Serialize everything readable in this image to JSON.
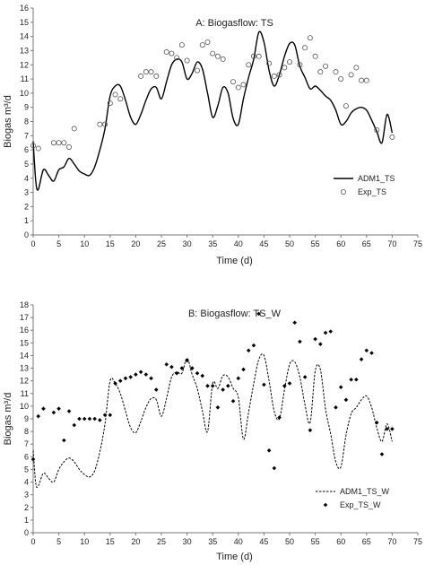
{
  "chart_data": [
    {
      "type": "line",
      "title": "A: Biogasflow: TS",
      "xlabel": "Time (d)",
      "ylabel": "Biogas m³/d",
      "xlim": [
        0,
        75
      ],
      "ylim": [
        0,
        16
      ],
      "xticks": [
        0,
        5,
        10,
        15,
        20,
        25,
        30,
        35,
        40,
        45,
        50,
        55,
        60,
        65,
        70,
        75
      ],
      "yticks": [
        0,
        1,
        2,
        3,
        4,
        5,
        6,
        7,
        8,
        9,
        10,
        11,
        12,
        13,
        14,
        15,
        16
      ],
      "grid": false,
      "legend_position": "bottom-right",
      "series": [
        {
          "name": "ADM1_TS",
          "style": "solid",
          "color": "#000000",
          "x": [
            0,
            0.5,
            1,
            2,
            3,
            4,
            5,
            6,
            7,
            8,
            9,
            10,
            11,
            12,
            13,
            14,
            15,
            16,
            17,
            18,
            19,
            20,
            21,
            22,
            23,
            24,
            25,
            26,
            27,
            28,
            29,
            30,
            31,
            32,
            33,
            34,
            35,
            36,
            37,
            38,
            39,
            40,
            41,
            42,
            43,
            44,
            45,
            46,
            47,
            48,
            49,
            50,
            51,
            52,
            53,
            54,
            55,
            56,
            57,
            58,
            59,
            60,
            61,
            62,
            63,
            64,
            65,
            66,
            67,
            68,
            69,
            70
          ],
          "y": [
            6.6,
            3.8,
            3.2,
            4.6,
            4.2,
            3.8,
            4.6,
            4.8,
            5.4,
            5.0,
            4.5,
            4.3,
            4.2,
            4.8,
            6.0,
            7.5,
            9.8,
            10.5,
            10.5,
            9.5,
            8.3,
            7.8,
            8.5,
            9.5,
            10.3,
            10.4,
            9.6,
            10.8,
            12.0,
            12.4,
            12.2,
            11.0,
            11.4,
            12.2,
            11.7,
            10.0,
            8.3,
            9.1,
            10.4,
            10.0,
            8.2,
            7.8,
            9.6,
            11.1,
            12.4,
            14.3,
            13.6,
            11.6,
            10.5,
            11.3,
            12.6,
            13.5,
            13.4,
            11.9,
            11.1,
            10.3,
            10.5,
            10.2,
            9.8,
            9.5,
            8.8,
            7.8,
            8.0,
            8.6,
            8.9,
            9.0,
            8.8,
            8.1,
            7.3,
            6.5,
            8.5,
            7.2
          ]
        },
        {
          "name": "Exp_TS",
          "style": "open-circle",
          "color": "#555555",
          "x": [
            0,
            1,
            4,
            5,
            6,
            7,
            8,
            13,
            14,
            15,
            16,
            17,
            21,
            22,
            23,
            24,
            26,
            27,
            28,
            29,
            30,
            32,
            33,
            34,
            35,
            36,
            37,
            39,
            40,
            41,
            42,
            43,
            44,
            46,
            47,
            48,
            49,
            50,
            52,
            53,
            54,
            55,
            56,
            57,
            59,
            60,
            61,
            62,
            63,
            64,
            65,
            67,
            70
          ],
          "y": [
            6.3,
            6.1,
            6.5,
            6.5,
            6.5,
            6.2,
            7.5,
            7.8,
            7.8,
            9.3,
            9.9,
            9.6,
            11.2,
            11.5,
            11.5,
            11.2,
            12.9,
            12.8,
            12.5,
            13.4,
            12.3,
            11.6,
            13.4,
            13.6,
            12.8,
            12.6,
            12.4,
            10.8,
            10.4,
            10.6,
            12.0,
            12.6,
            12.6,
            12.1,
            11.2,
            11.3,
            11.8,
            12.2,
            12.0,
            13.2,
            13.9,
            12.6,
            11.5,
            11.9,
            11.5,
            11.0,
            9.1,
            11.3,
            11.8,
            10.9,
            10.9,
            7.4,
            6.9
          ]
        }
      ]
    },
    {
      "type": "line",
      "title": "B: Biogasflow: TS_W",
      "xlabel": "Time (d)",
      "ylabel": "Biogas m³/d",
      "xlim": [
        0,
        75
      ],
      "ylim": [
        0,
        18
      ],
      "xticks": [
        0,
        5,
        10,
        15,
        20,
        25,
        30,
        35,
        40,
        45,
        50,
        55,
        60,
        65,
        70,
        75
      ],
      "yticks": [
        0,
        1,
        2,
        3,
        4,
        5,
        6,
        7,
        8,
        9,
        10,
        11,
        12,
        13,
        14,
        15,
        16,
        17,
        18
      ],
      "grid": false,
      "legend_position": "bottom-right",
      "series": [
        {
          "name": "ADM1_TS_W",
          "style": "dashed",
          "color": "#000000",
          "x": [
            0,
            0.5,
            1,
            2,
            3,
            4,
            5,
            6,
            7,
            8,
            9,
            10,
            11,
            12,
            13,
            14,
            15,
            16,
            17,
            18,
            19,
            20,
            21,
            22,
            23,
            24,
            25,
            26,
            27,
            28,
            29,
            30,
            31,
            32,
            33,
            34,
            35,
            36,
            37,
            38,
            39,
            40,
            41,
            42,
            43,
            44,
            45,
            46,
            47,
            48,
            49,
            50,
            51,
            52,
            53,
            54,
            55,
            56,
            57,
            58,
            59,
            60,
            61,
            62,
            63,
            64,
            65,
            66,
            67,
            68,
            69,
            70
          ],
          "y": [
            6.5,
            3.9,
            3.7,
            4.7,
            4.3,
            4.0,
            5.0,
            5.6,
            5.9,
            5.6,
            5.0,
            4.6,
            4.4,
            4.9,
            6.4,
            8.6,
            12.0,
            11.8,
            11.0,
            9.6,
            8.3,
            7.9,
            8.8,
            9.9,
            10.6,
            10.5,
            9.2,
            10.6,
            12.3,
            12.7,
            12.6,
            13.8,
            12.5,
            11.4,
            9.6,
            8.0,
            11.8,
            11.4,
            12.4,
            12.3,
            11.4,
            10.7,
            7.4,
            9.5,
            11.8,
            13.7,
            14.0,
            12.0,
            9.6,
            9.0,
            11.3,
            13.3,
            13.5,
            12.3,
            10.1,
            8.7,
            12.8,
            12.9,
            9.8,
            7.8,
            5.6,
            5.2,
            7.7,
            9.4,
            9.9,
            10.5,
            10.8,
            9.9,
            8.3,
            7.2,
            8.6,
            7.2
          ]
        },
        {
          "name": "Exp_TS_W",
          "style": "filled-diamond",
          "color": "#000000",
          "x": [
            0,
            1,
            2,
            4,
            5,
            6,
            7,
            8,
            9,
            10,
            11,
            12,
            13,
            14,
            15,
            16,
            17,
            18,
            19,
            20,
            21,
            22,
            23,
            24,
            26,
            27,
            28,
            29,
            30,
            31,
            32,
            33,
            34,
            35,
            36,
            37,
            38,
            39,
            40,
            41,
            42,
            43,
            44,
            45,
            46,
            47,
            48,
            49,
            50,
            51,
            52,
            53,
            54,
            55,
            56,
            57,
            58,
            59,
            60,
            61,
            62,
            63,
            64,
            65,
            66,
            67,
            68,
            69,
            70
          ],
          "y": [
            5.8,
            9.2,
            9.8,
            9.5,
            9.8,
            7.3,
            9.6,
            8.5,
            9.0,
            9.0,
            9.0,
            9.0,
            8.9,
            9.3,
            9.3,
            11.8,
            12.0,
            12.2,
            12.3,
            12.5,
            12.7,
            12.5,
            12.2,
            11.3,
            13.3,
            13.1,
            12.6,
            13.0,
            13.6,
            13.0,
            12.6,
            12.4,
            11.6,
            11.6,
            9.9,
            11.3,
            11.6,
            10.4,
            12.2,
            12.9,
            14.4,
            14.8,
            17.3,
            11.7,
            6.5,
            5.1,
            9.1,
            11.6,
            11.8,
            16.6,
            15.1,
            12.3,
            8.1,
            15.3,
            14.9,
            15.8,
            15.9,
            9.9,
            11.5,
            10.5,
            12.1,
            12.1,
            13.7,
            14.4,
            14.2,
            8.7,
            6.2,
            8.2,
            8.2
          ]
        }
      ]
    }
  ]
}
